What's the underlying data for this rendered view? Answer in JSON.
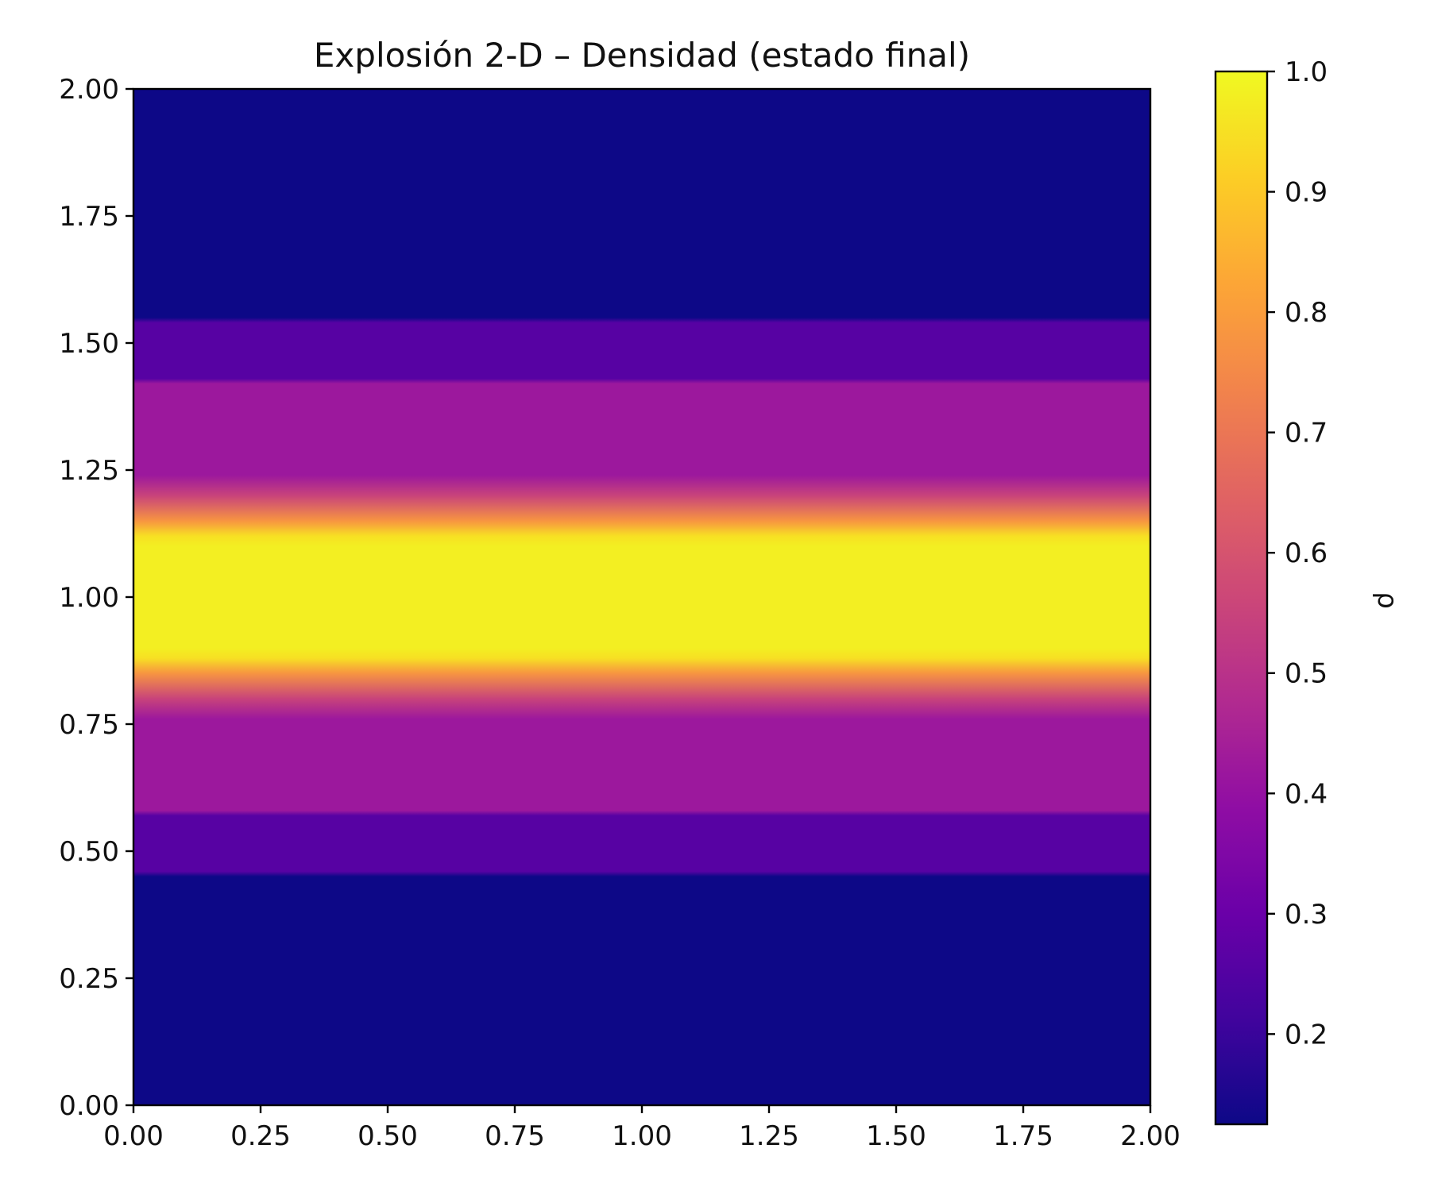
{
  "chart_data": {
    "type": "heatmap",
    "title": "Explosión 2-D – Densidad (estado final)",
    "xlabel": "",
    "ylabel": "",
    "xlim": [
      0,
      2
    ],
    "ylim": [
      0,
      2
    ],
    "x_ticks": [
      "0.00",
      "0.25",
      "0.50",
      "0.75",
      "1.00",
      "1.25",
      "1.50",
      "1.75",
      "2.00"
    ],
    "y_ticks": [
      "0.00",
      "0.25",
      "0.50",
      "0.75",
      "1.00",
      "1.25",
      "1.50",
      "1.75",
      "2.00"
    ],
    "colormap": "plasma",
    "colorbar": {
      "label": "ρ",
      "range": [
        0.125,
        1.0
      ],
      "ticks": [
        "0.2",
        "0.3",
        "0.4",
        "0.5",
        "0.6",
        "0.7",
        "0.8",
        "0.9",
        "1.0"
      ]
    },
    "note_uniform_in_x": true,
    "density_profile_y": {
      "y": [
        0.0,
        0.45,
        0.46,
        0.57,
        0.58,
        0.76,
        0.8,
        0.85,
        0.88,
        0.9,
        1.0,
        1.1,
        1.12,
        1.15,
        1.2,
        1.24,
        1.42,
        1.43,
        1.54,
        1.55,
        2.0
      ],
      "rho": [
        0.125,
        0.125,
        0.26,
        0.26,
        0.42,
        0.42,
        0.55,
        0.78,
        0.95,
        0.98,
        0.98,
        0.98,
        0.95,
        0.78,
        0.55,
        0.42,
        0.42,
        0.26,
        0.26,
        0.125,
        0.125
      ]
    }
  }
}
